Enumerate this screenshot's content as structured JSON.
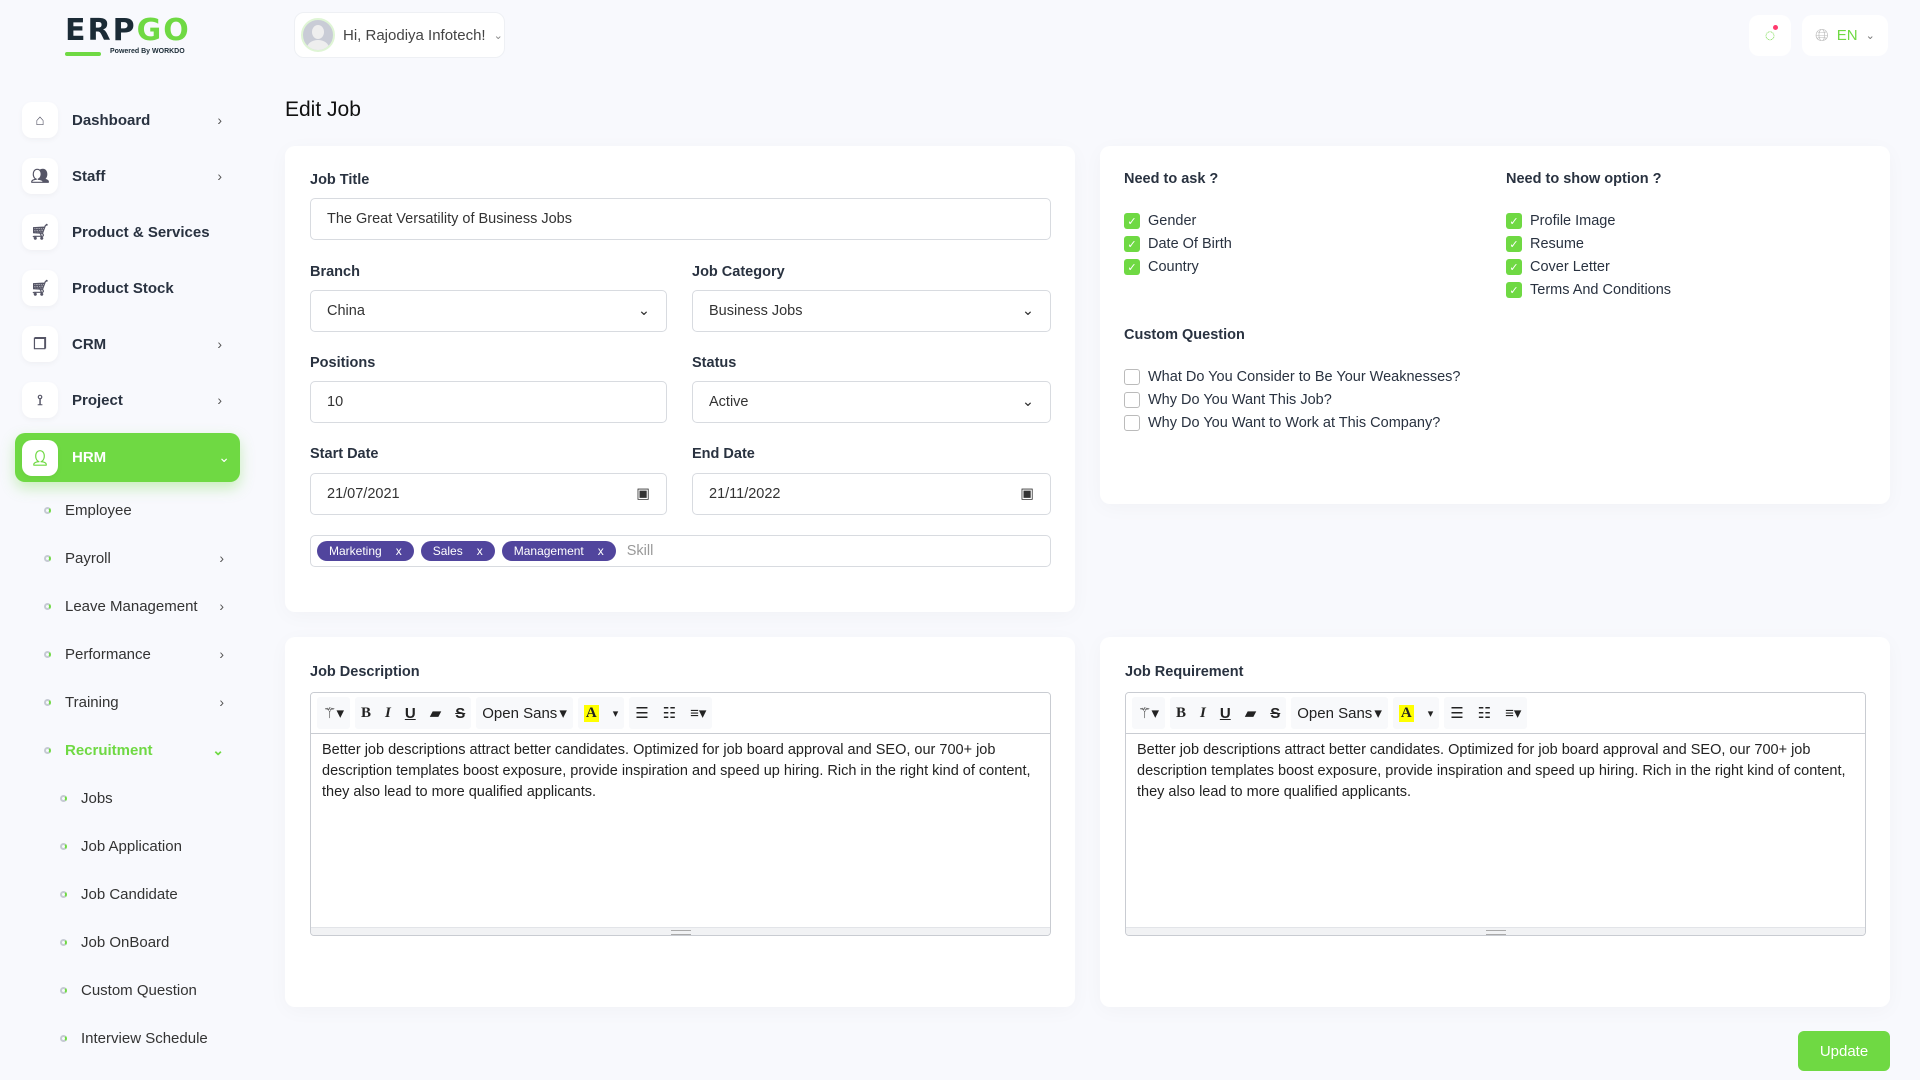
{
  "brand": {
    "name": "ERPGO",
    "powered": "Powered By WORKDO"
  },
  "header": {
    "greeting": "Hi, Rajodiya Infotech!",
    "language": "EN",
    "accent": "#6fd943"
  },
  "sidebar": {
    "items": [
      {
        "label": "Dashboard",
        "icon": "home-icon",
        "chev": "›"
      },
      {
        "label": "Staff",
        "icon": "users-icon",
        "chev": "›"
      },
      {
        "label": "Product & Services",
        "icon": "cart-icon",
        "chev": ""
      },
      {
        "label": "Product Stock",
        "icon": "cart-icon",
        "chev": ""
      },
      {
        "label": "CRM",
        "icon": "layers-icon",
        "chev": "›"
      },
      {
        "label": "Project",
        "icon": "share-icon",
        "chev": "›"
      }
    ],
    "active": {
      "label": "HRM",
      "icon": "user-icon"
    },
    "sub": [
      {
        "label": "Employee",
        "chev": ""
      },
      {
        "label": "Payroll",
        "chev": "›"
      },
      {
        "label": "Leave Management",
        "chev": "›"
      },
      {
        "label": "Performance",
        "chev": "›"
      },
      {
        "label": "Training",
        "chev": "›"
      }
    ],
    "recruitment": "Recruitment",
    "recruitment_items": [
      "Jobs",
      "Job Application",
      "Job Candidate",
      "Job OnBoard",
      "Custom Question",
      "Interview Schedule"
    ]
  },
  "page": {
    "title": "Edit Job"
  },
  "form": {
    "job_title_label": "Job Title",
    "job_title": "The Great Versatility of Business Jobs",
    "branch_label": "Branch",
    "branch": "China",
    "category_label": "Job Category",
    "category": "Business Jobs",
    "positions_label": "Positions",
    "positions": "10",
    "status_label": "Status",
    "status": "Active",
    "start_label": "Start Date",
    "start": "21/07/2021",
    "end_label": "End Date",
    "end": "21/11/2022",
    "skills": [
      "Marketing",
      "Sales",
      "Management"
    ],
    "skill_placeholder": "Skill"
  },
  "options": {
    "ask_title": "Need to ask ?",
    "ask": [
      "Gender",
      "Date Of Birth",
      "Country"
    ],
    "show_title": "Need to show option ?",
    "show": [
      "Profile Image",
      "Resume",
      "Cover Letter",
      "Terms And Conditions"
    ],
    "custom_title": "Custom Question",
    "custom": [
      "What Do You Consider to Be Your Weaknesses?",
      "Why Do You Want This Job?",
      "Why Do You Want to Work at This Company?"
    ]
  },
  "editors": [
    {
      "label": "Job Description",
      "font": "Open Sans",
      "text": "Better job descriptions attract better candidates. Optimized for job board approval and SEO, our 700+ job description templates boost exposure, provide inspiration and speed up hiring. Rich in the right kind of content, they also lead to more qualified applicants."
    },
    {
      "label": "Job Requirement",
      "font": "Open Sans",
      "text": "Better job descriptions attract better candidates. Optimized for job board approval and SEO, our 700+ job description templates boost exposure, provide inspiration and speed up hiring. Rich in the right kind of content, they also lead to more qualified applicants."
    }
  ],
  "update_label": "Update"
}
